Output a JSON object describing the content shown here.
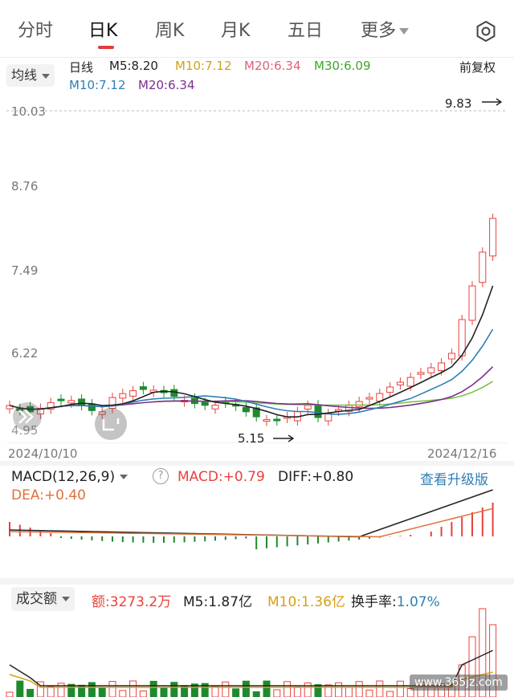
{
  "tabs": [
    {
      "label": "分时"
    },
    {
      "label": "日K"
    },
    {
      "label": "周K"
    },
    {
      "label": "月K"
    },
    {
      "label": "五日"
    },
    {
      "label": "更多"
    }
  ],
  "settings_icon": "settings-icon",
  "kline": {
    "ma_selector": "均线",
    "period_label": "日线",
    "ma5": "M5:8.20",
    "ma10": "M10:7.12",
    "ma20": "M20:6.34",
    "ma30": "M30:6.09",
    "ma10_b": "M10:7.12",
    "ma20_b": "M20:6.34",
    "adjust": "前复权",
    "price_labels": [
      "10.03",
      "8.76",
      "7.49",
      "6.22",
      "4.95"
    ],
    "high_marker": "9.83",
    "low_marker": "5.15",
    "start_date": "2024/10/10",
    "end_date": "2024/12/16",
    "colors": {
      "up": "#e8413c",
      "down": "#1e8a2e",
      "ma5": "#222222",
      "ma10": "#2f7fb5",
      "ma20": "#7a2e8e",
      "ma30": "#7dc44a"
    }
  },
  "macd": {
    "selector": "MACD(12,26,9)",
    "help_icon": "help-icon",
    "macd": "MACD:+0.79",
    "diff": "DIFF:+0.80",
    "dea": "DEA:+0.40",
    "upgrade_link": "查看升级版"
  },
  "volume": {
    "selector": "成交额",
    "amount": "额:3273.2万",
    "m5": "M5:1.87亿",
    "m10": "M10:1.36亿",
    "turnover_label": "换手率:",
    "turnover_value": "1.07%"
  },
  "watermark": "www.365jz.com"
}
